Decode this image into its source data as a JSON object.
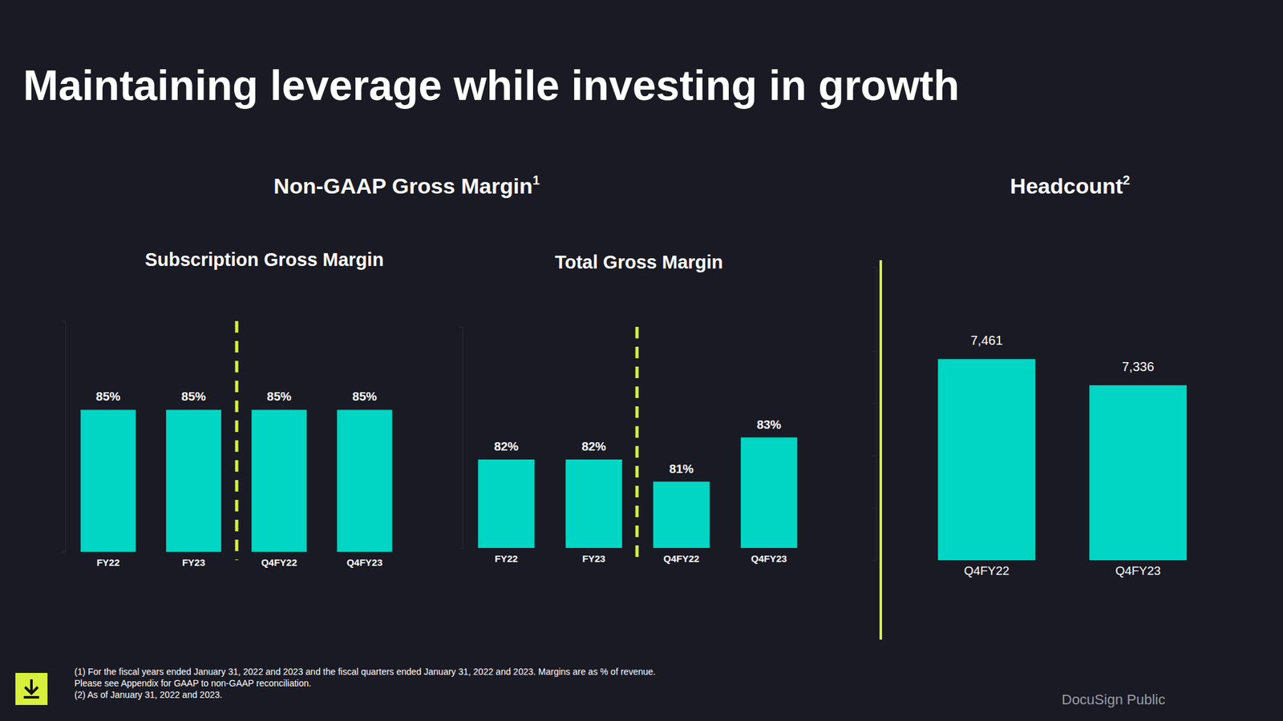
{
  "page": {
    "title": "Maintaining leverage while investing in growth",
    "section_titles": [
      {
        "text": "Non-GAAP Gross Margin",
        "note": "1"
      },
      {
        "text": "Headcount",
        "note": "2"
      }
    ],
    "footnotes": [
      "(1)  For the fiscal years ended January 31, 2022 and 2023 and the fiscal quarters ended January 31, 2022 and 2023. Margins are as % of revenue.",
      "Please see Appendix for GAAP to non-GAAP reconciliation.",
      "(2)  As of January  31, 2022 and 2023."
    ],
    "brand": "DocuSign Public"
  },
  "chart_data": [
    {
      "type": "bar",
      "title": "Subscription Gross Margin",
      "categories": [
        "FY22",
        "FY23",
        "Q4FY22",
        "Q4FY23"
      ],
      "values": [
        85,
        85,
        85,
        85
      ],
      "value_labels": [
        "85%",
        "85%",
        "85%",
        "85%"
      ],
      "color": "#00d6c3",
      "ylim": [
        77,
        90
      ],
      "data_labels": true,
      "tick_labels": "x",
      "grid": false
    },
    {
      "type": "bar",
      "title": "Total Gross Margin",
      "categories": [
        "FY22",
        "FY23",
        "Q4FY22",
        "Q4FY23"
      ],
      "values": [
        82,
        82,
        81,
        83
      ],
      "value_labels": [
        "82%",
        "82%",
        "81%",
        "83%"
      ],
      "color": "#00d6c3",
      "ylim": [
        78,
        88
      ],
      "data_labels": true,
      "tick_labels": "x",
      "grid": false
    },
    {
      "type": "bar",
      "categories": [
        "Q4FY22",
        "Q4FY23"
      ],
      "values": [
        7461,
        7336
      ],
      "value_labels": [
        "7,461",
        "7,336"
      ],
      "color": "#00d6c3",
      "ylim": [
        6500,
        7900
      ],
      "yticks": [
        6500,
        6750,
        7000,
        7250,
        7500
      ],
      "data_labels": true,
      "tick_labels": "x",
      "grid": false
    }
  ]
}
